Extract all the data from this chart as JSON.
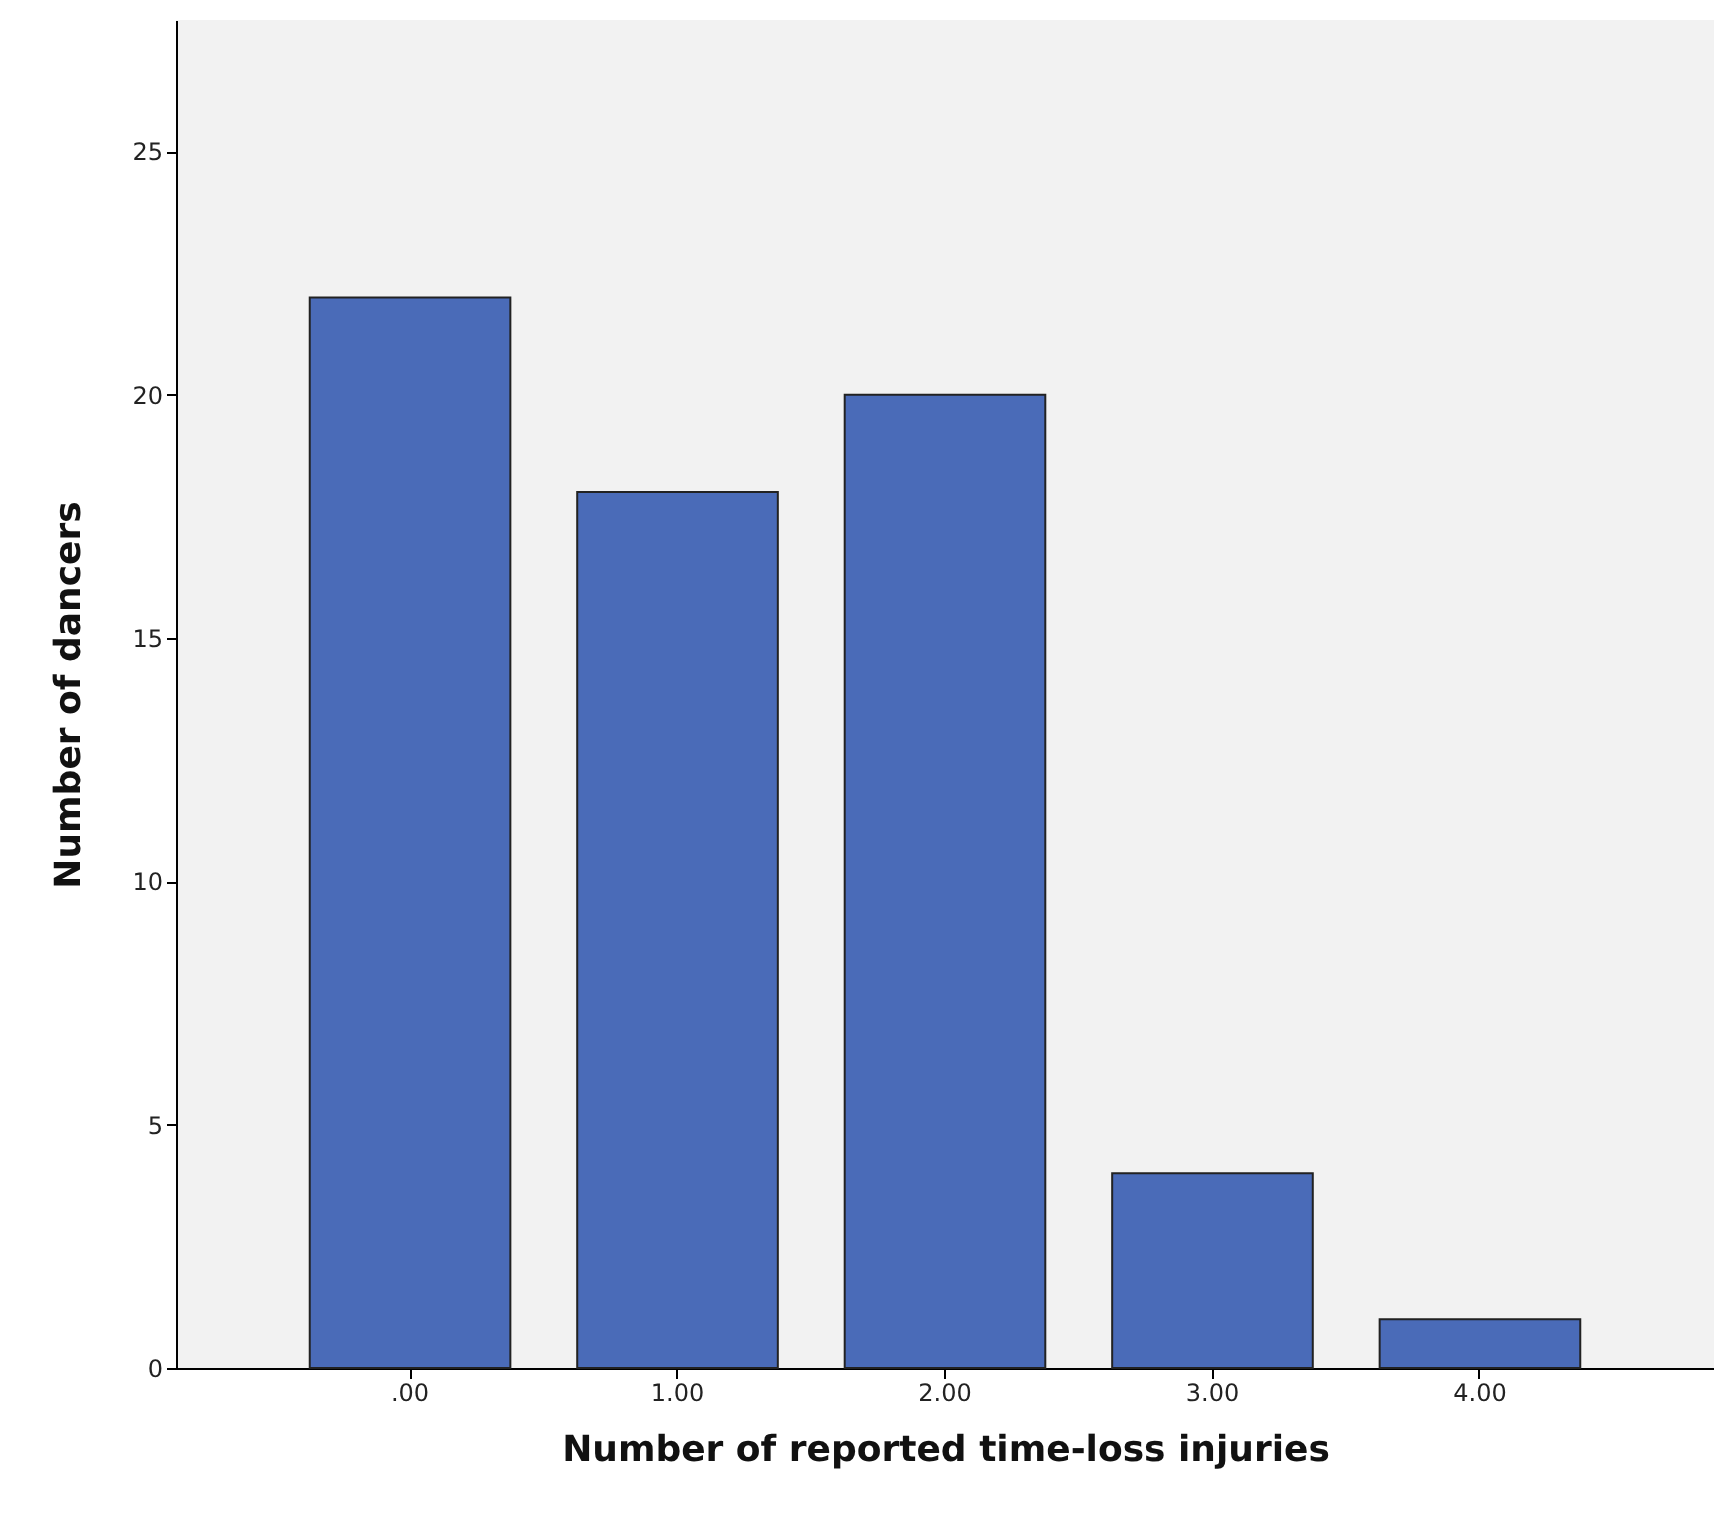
{
  "chart_data": {
    "type": "bar",
    "xlabel": "Number of reported time-loss injuries",
    "ylabel": "Number of dancers",
    "categories": [
      ".00",
      "1.00",
      "2.00",
      "3.00",
      "4.00"
    ],
    "values": [
      22,
      18,
      20,
      4,
      1
    ],
    "color": "#4a6bb8",
    "ylim": [
      0,
      27.7
    ],
    "yticks": [
      0,
      5,
      10,
      15,
      20,
      25
    ],
    "grid": false
  }
}
